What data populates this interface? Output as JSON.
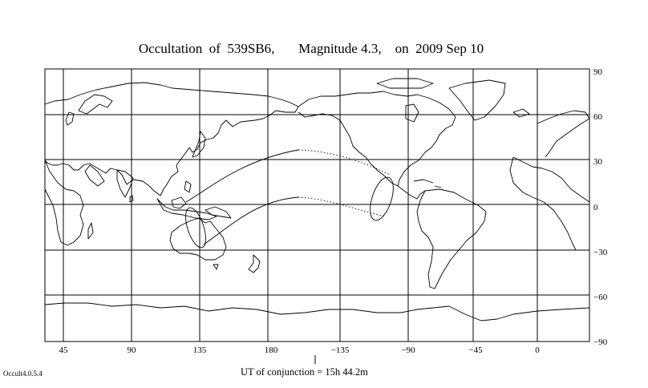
{
  "title": "Occultation  of  539SB6,       Magnitude 4.3,    on  2009 Sep 10",
  "conjunction_label": "UT of conjunction = 15h 44.2m",
  "version_label": "Occult4.0.5.4",
  "longitude_ticks": [
    "45",
    "90",
    "135",
    "180",
    "−135",
    "−90",
    "−45",
    "0"
  ],
  "latitude_ticks": [
    "90",
    "60",
    "30",
    "0",
    "−30",
    "−60",
    "−90"
  ],
  "colors": {
    "ink": "#000000",
    "background": "#ffffff"
  }
}
